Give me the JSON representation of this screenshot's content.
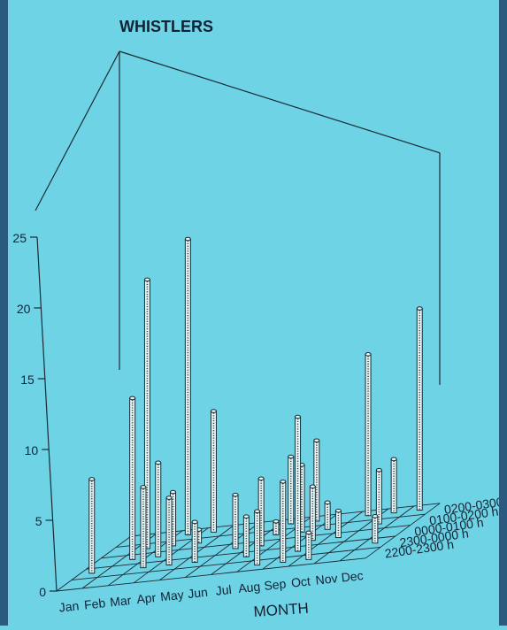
{
  "chart_data": {
    "type": "bar",
    "style": "3d-bar",
    "title": "WHISTLERS",
    "xlabel": "MONTH",
    "ylabel": "",
    "categories": [
      "Jan",
      "Feb",
      "Mar",
      "Apr",
      "May",
      "Jun",
      "Jul",
      "Aug",
      "Sep",
      "Oct",
      "Nov",
      "Dec"
    ],
    "z_categories": [
      "2200-2300 h",
      "2300-0000 h",
      "0000-0100 h",
      "0100-0200 h",
      "0200-0300 h"
    ],
    "y_ticks": [
      0,
      5,
      10,
      15,
      20,
      25
    ],
    "ylim": [
      0,
      25
    ],
    "grid": true,
    "series": [
      {
        "name": "2200-2300 h",
        "values": [
          0,
          0,
          0,
          0,
          0,
          0,
          0,
          4,
          6,
          2,
          0,
          0
        ]
      },
      {
        "name": "2300-0000 h",
        "values": [
          7,
          0,
          6,
          5,
          3,
          0,
          3,
          0,
          10,
          0,
          0,
          2
        ]
      },
      {
        "name": "0000-0100 h",
        "values": [
          0,
          12,
          7,
          0,
          0,
          4,
          5,
          0,
          4,
          2,
          0,
          0
        ]
      },
      {
        "name": "0100-0200 h",
        "values": [
          0,
          20,
          4,
          1,
          0,
          0,
          1,
          5,
          2,
          0,
          4,
          0
        ]
      },
      {
        "name": "0200-0300 h",
        "values": [
          0,
          0,
          22,
          9,
          0,
          0,
          5,
          6,
          0,
          12,
          4,
          15
        ]
      }
    ]
  }
}
